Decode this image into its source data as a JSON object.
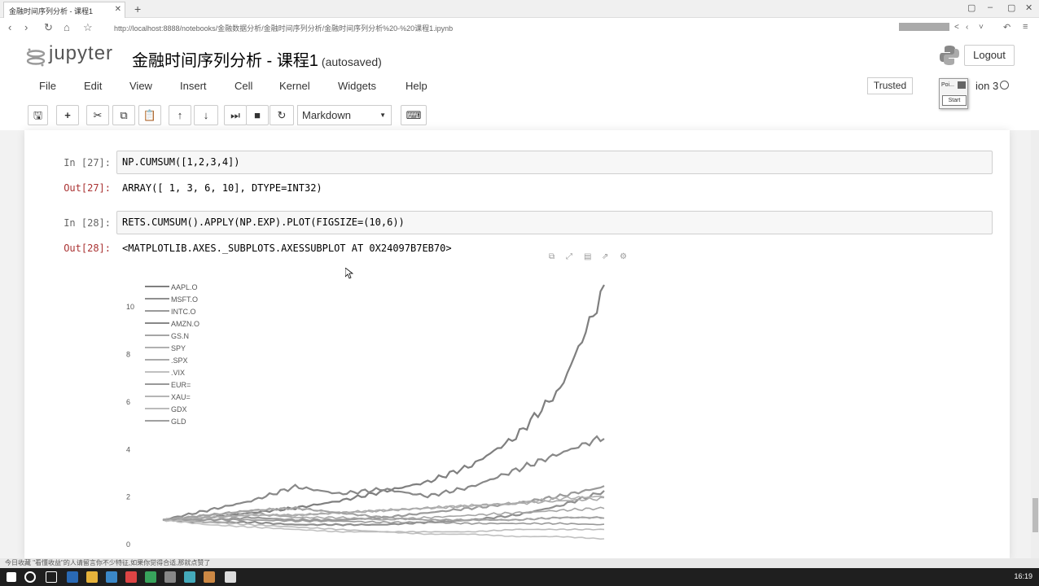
{
  "browser": {
    "tab_title": "金融时间序列分析 - 课程1",
    "url": "http://localhost:8888/notebooks/金融数据分析/金融时间序列分析/金融时间序列分析%20-%20课程1.ipynb"
  },
  "header": {
    "logo_text": "jupyter",
    "notebook_title": "金融时间序列分析 - 课程1",
    "autosave": "(autosaved)",
    "logout_label": "Logout",
    "trusted_label": "Trusted",
    "kernel_name": "ion 3",
    "popup_label": "Poi...",
    "popup_button": "Start"
  },
  "menu": [
    "File",
    "Edit",
    "View",
    "Insert",
    "Cell",
    "Kernel",
    "Widgets",
    "Help"
  ],
  "toolbar": {
    "cell_type": "Markdown"
  },
  "cells": [
    {
      "in_prompt": "In [27]:",
      "code": "NP.CUMSUM([1,2,3,4])",
      "out_prompt": "Out[27]:",
      "output": "ARRAY([ 1,   3,   6, 10], DTYPE=INT32)"
    },
    {
      "in_prompt": "In [28]:",
      "code": "RETS.CUMSUM().APPLY(NP.EXP).PLOT(FIGSIZE=(10,6))",
      "out_prompt": "Out[28]:",
      "output": "<MATPLOTLIB.AXES._SUBPLOTS.AXESSUBPLOT AT 0X24097B7EB70>"
    }
  ],
  "chart_data": {
    "type": "line",
    "yticks": [
      "0",
      "2",
      "4",
      "6",
      "8",
      "10"
    ],
    "ylim": [
      0,
      11
    ],
    "legend_placement": "top-left",
    "legend": [
      "AAPL.O",
      "MSFT.O",
      "INTC.O",
      "AMZN.O",
      "GS.N",
      "SPY",
      ".SPX",
      ".VIX",
      "EUR=",
      "XAU=",
      "GDX",
      "GLD"
    ],
    "series": [
      {
        "name": "AAPL.O",
        "values": [
          1.0,
          1.1,
          1.3,
          1.5,
          1.8,
          2.2,
          2.6,
          3.3,
          4.5,
          6.5,
          10.7
        ]
      },
      {
        "name": "MSFT.O",
        "values": [
          1.0,
          0.9,
          0.9,
          0.8,
          0.8,
          0.8,
          0.9,
          1.0,
          1.2,
          1.6,
          2.2
        ]
      },
      {
        "name": "INTC.O",
        "values": [
          1.0,
          1.0,
          1.1,
          1.0,
          1.0,
          1.1,
          1.3,
          1.5,
          1.7,
          2.0,
          2.4
        ]
      },
      {
        "name": "AMZN.O",
        "values": [
          1.0,
          1.4,
          1.8,
          2.4,
          2.1,
          2.3,
          2.0,
          2.4,
          3.1,
          3.8,
          4.5
        ]
      },
      {
        "name": "GS.N",
        "values": [
          1.0,
          1.2,
          1.3,
          1.1,
          1.1,
          1.0,
          1.1,
          1.2,
          1.3,
          1.4,
          1.5
        ]
      },
      {
        "name": "SPY",
        "values": [
          1.0,
          1.1,
          1.2,
          1.2,
          1.3,
          1.4,
          1.5,
          1.6,
          1.7,
          1.9,
          2.0
        ]
      },
      {
        "name": ".SPX",
        "values": [
          1.0,
          1.1,
          1.2,
          1.2,
          1.3,
          1.4,
          1.5,
          1.6,
          1.7,
          1.8,
          1.9
        ]
      },
      {
        "name": ".VIX",
        "values": [
          1.0,
          0.8,
          0.7,
          0.6,
          0.5,
          0.5,
          0.4,
          0.4,
          0.3,
          0.3,
          0.2
        ]
      },
      {
        "name": "EUR=",
        "values": [
          1.0,
          1.0,
          1.0,
          0.95,
          0.95,
          0.9,
          0.9,
          0.85,
          0.85,
          0.85,
          0.8
        ]
      },
      {
        "name": "XAU=",
        "values": [
          1.0,
          1.2,
          1.4,
          1.5,
          1.3,
          1.1,
          1.0,
          1.0,
          1.0,
          1.1,
          1.1
        ]
      },
      {
        "name": "GDX",
        "values": [
          1.0,
          0.9,
          0.8,
          0.7,
          0.6,
          0.5,
          0.5,
          0.5,
          0.6,
          0.6,
          0.6
        ]
      },
      {
        "name": "GLD",
        "values": [
          1.0,
          1.2,
          1.4,
          1.5,
          1.3,
          1.1,
          1.0,
          1.0,
          1.0,
          1.1,
          1.1
        ]
      }
    ]
  },
  "statusbar": {
    "text": "今日收藏   \"看懂收益\"的人请留言你不少特征,如果你觉得合适,那就点赞了"
  },
  "taskbar": {
    "clock": "16:19"
  }
}
